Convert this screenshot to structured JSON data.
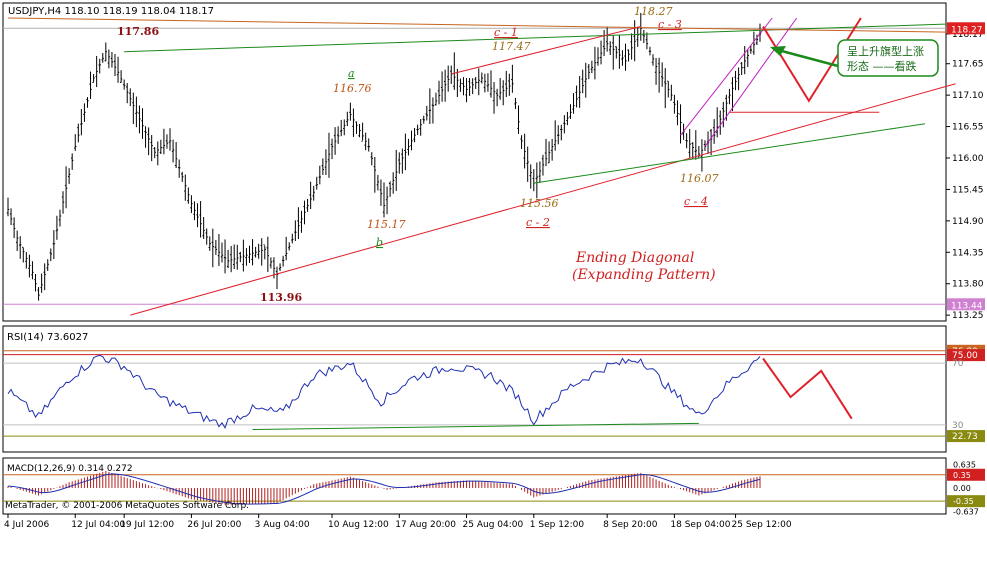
{
  "header": {
    "title": "USDJPY,H4 118.10 118.19 118.04 118.17",
    "symbol": "USDJPY",
    "timeframe": "H4",
    "ohlc": [
      118.1,
      118.19,
      118.04,
      118.17
    ]
  },
  "copyright": "MetaTrader, © 2001-2006 MetaQuotes Software Corp.",
  "colors": {
    "background": "#ffffff",
    "bars": "#000000",
    "grid": "#c8c8c8",
    "trend_red": "#e0202a",
    "trend_green": "#1a8a1a",
    "rsi_line": "#1f2fb0",
    "macd_hist": "#b02020",
    "axis_text": "#000000",
    "wave_label": "#c05010",
    "level_label": "#9a6a10",
    "annotation_red": "#d02020"
  },
  "chart_data": [
    {
      "type": "candlestick",
      "title": "USDJPY,H4",
      "x_ticks": [
        "4 Jul 2006",
        "12 Jul 04:00",
        "19 Jul 12:00",
        "26 Jul 20:00",
        "3 Aug 04:00",
        "10 Aug 12:00",
        "17 Aug 20:00",
        "25 Aug 04:00",
        "1 Sep 12:00",
        "8 Sep 20:00",
        "18 Sep 04:00",
        "25 Sep 12:00"
      ],
      "y_ticks": [
        118.17,
        117.65,
        117.1,
        116.55,
        116.0,
        115.45,
        114.9,
        114.35,
        113.8,
        113.25
      ],
      "ylim": [
        113.2,
        118.45
      ],
      "current_price": 118.27,
      "horizontal_level": 113.44,
      "path_points": [
        {
          "i": 0,
          "v": 115.1
        },
        {
          "i": 3,
          "v": 114.6
        },
        {
          "i": 8,
          "v": 114.0
        },
        {
          "i": 10,
          "v": 113.6
        },
        {
          "i": 15,
          "v": 114.5
        },
        {
          "i": 22,
          "v": 116.2
        },
        {
          "i": 28,
          "v": 117.4
        },
        {
          "i": 32,
          "v": 117.86
        },
        {
          "i": 36,
          "v": 117.5
        },
        {
          "i": 42,
          "v": 116.8
        },
        {
          "i": 48,
          "v": 116.1
        },
        {
          "i": 53,
          "v": 116.3
        },
        {
          "i": 60,
          "v": 115.2
        },
        {
          "i": 66,
          "v": 114.5
        },
        {
          "i": 72,
          "v": 114.2
        },
        {
          "i": 78,
          "v": 114.3
        },
        {
          "i": 84,
          "v": 114.4
        },
        {
          "i": 88,
          "v": 113.96
        },
        {
          "i": 94,
          "v": 114.7
        },
        {
          "i": 100,
          "v": 115.4
        },
        {
          "i": 106,
          "v": 116.2
        },
        {
          "i": 112,
          "v": 116.76
        },
        {
          "i": 118,
          "v": 116.2
        },
        {
          "i": 123,
          "v": 115.17
        },
        {
          "i": 128,
          "v": 115.9
        },
        {
          "i": 134,
          "v": 116.5
        },
        {
          "i": 140,
          "v": 117.0
        },
        {
          "i": 145,
          "v": 117.47
        },
        {
          "i": 150,
          "v": 117.2
        },
        {
          "i": 155,
          "v": 117.4
        },
        {
          "i": 160,
          "v": 117.1
        },
        {
          "i": 165,
          "v": 117.3
        },
        {
          "i": 168,
          "v": 116.3
        },
        {
          "i": 172,
          "v": 115.56
        },
        {
          "i": 178,
          "v": 116.2
        },
        {
          "i": 184,
          "v": 116.8
        },
        {
          "i": 190,
          "v": 117.5
        },
        {
          "i": 196,
          "v": 118.0
        },
        {
          "i": 202,
          "v": 117.7
        },
        {
          "i": 207,
          "v": 118.27
        },
        {
          "i": 212,
          "v": 117.6
        },
        {
          "i": 217,
          "v": 117.1
        },
        {
          "i": 222,
          "v": 116.3
        },
        {
          "i": 226,
          "v": 116.07
        },
        {
          "i": 231,
          "v": 116.4
        },
        {
          "i": 236,
          "v": 117.1
        },
        {
          "i": 241,
          "v": 117.7
        },
        {
          "i": 246,
          "v": 118.17
        }
      ]
    },
    {
      "type": "line",
      "title": "RSI(14) 73.6027",
      "series": [
        {
          "name": "RSI(14)",
          "last": 73.6027
        }
      ],
      "levels": [
        70,
        30
      ],
      "ylim": [
        15,
        85
      ],
      "axis_labels": [
        "76.80",
        "75.00",
        "70",
        "30",
        "22.73"
      ],
      "path_points": [
        {
          "i": 0,
          "v": 52
        },
        {
          "i": 10,
          "v": 35
        },
        {
          "i": 20,
          "v": 60
        },
        {
          "i": 30,
          "v": 75
        },
        {
          "i": 38,
          "v": 68
        },
        {
          "i": 48,
          "v": 50
        },
        {
          "i": 60,
          "v": 38
        },
        {
          "i": 70,
          "v": 30
        },
        {
          "i": 80,
          "v": 40
        },
        {
          "i": 90,
          "v": 38
        },
        {
          "i": 100,
          "v": 62
        },
        {
          "i": 112,
          "v": 70
        },
        {
          "i": 122,
          "v": 45
        },
        {
          "i": 132,
          "v": 60
        },
        {
          "i": 145,
          "v": 68
        },
        {
          "i": 158,
          "v": 62
        },
        {
          "i": 166,
          "v": 50
        },
        {
          "i": 172,
          "v": 33
        },
        {
          "i": 184,
          "v": 55
        },
        {
          "i": 196,
          "v": 68
        },
        {
          "i": 207,
          "v": 73
        },
        {
          "i": 217,
          "v": 52
        },
        {
          "i": 226,
          "v": 36
        },
        {
          "i": 236,
          "v": 58
        },
        {
          "i": 246,
          "v": 73.6
        }
      ]
    },
    {
      "type": "bar",
      "title": "MACD(12,26,9) 0.314 0.272",
      "series": [
        {
          "name": "MACD",
          "last": 0.314
        },
        {
          "name": "Signal",
          "last": 0.272
        }
      ],
      "ylim": [
        -0.637,
        0.635
      ],
      "axis_labels": [
        "0.635",
        "0.35",
        "0.00",
        "-0.35",
        "-0.637"
      ],
      "path_points": [
        {
          "i": 0,
          "v": 0.05
        },
        {
          "i": 10,
          "v": -0.2
        },
        {
          "i": 20,
          "v": 0.15
        },
        {
          "i": 32,
          "v": 0.45
        },
        {
          "i": 45,
          "v": 0.1
        },
        {
          "i": 60,
          "v": -0.3
        },
        {
          "i": 72,
          "v": -0.45
        },
        {
          "i": 88,
          "v": -0.4
        },
        {
          "i": 100,
          "v": 0.1
        },
        {
          "i": 112,
          "v": 0.3
        },
        {
          "i": 124,
          "v": -0.05
        },
        {
          "i": 140,
          "v": 0.15
        },
        {
          "i": 150,
          "v": 0.2
        },
        {
          "i": 165,
          "v": 0.1
        },
        {
          "i": 172,
          "v": -0.25
        },
        {
          "i": 190,
          "v": 0.2
        },
        {
          "i": 207,
          "v": 0.4
        },
        {
          "i": 217,
          "v": 0.05
        },
        {
          "i": 226,
          "v": -0.2
        },
        {
          "i": 240,
          "v": 0.2
        },
        {
          "i": 246,
          "v": 0.31
        }
      ]
    }
  ],
  "annotations": {
    "price_labels": [
      "117.86",
      "113.96",
      "115.17",
      "116.76",
      "117.47",
      "118.27",
      "115.56",
      "116.07"
    ],
    "wave_labels": [
      "a",
      "b",
      "c - 1",
      "c - 2",
      "c - 3",
      "c - 4"
    ],
    "pattern_title": "Ending  Diagonal",
    "pattern_subtitle": "(Expanding Pattern)",
    "callout_line1": "呈上升旗型上涨",
    "callout_line2": "形态 ——看跌"
  }
}
